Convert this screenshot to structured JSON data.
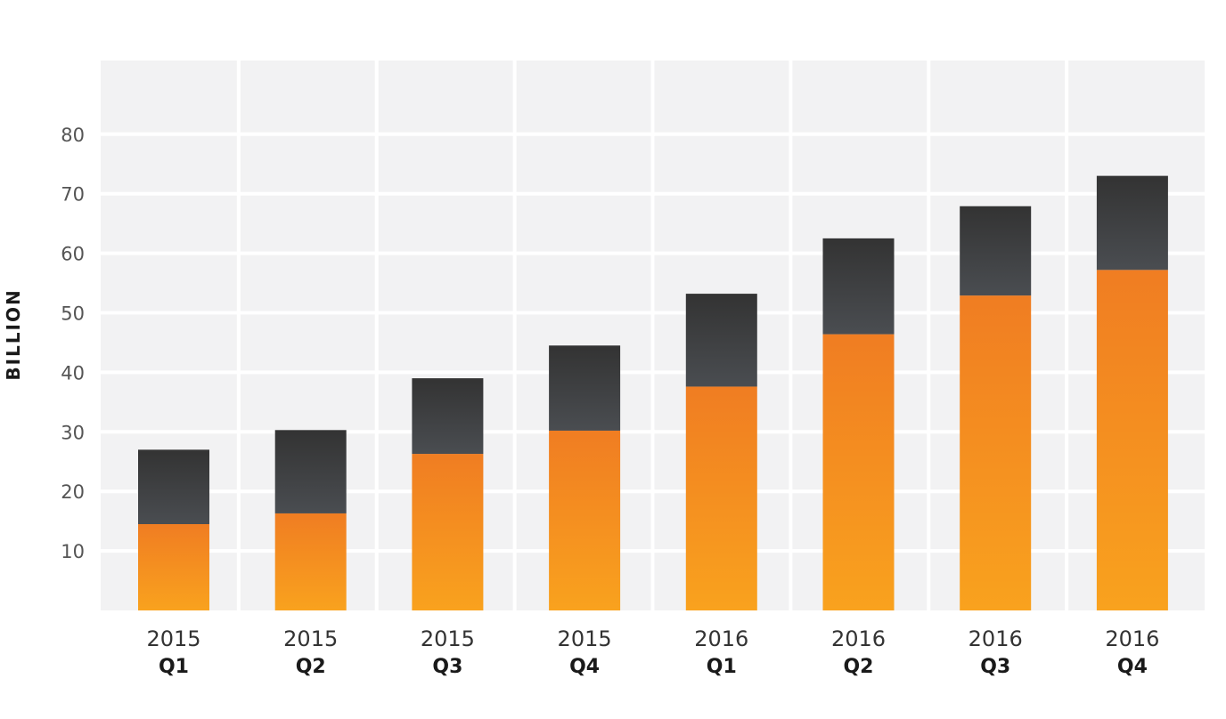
{
  "chart_data": {
    "type": "bar",
    "stacked": true,
    "ylabel": "BILLION",
    "xlabel": "",
    "title": "",
    "ylim": [
      0,
      90
    ],
    "yticks": [
      10,
      20,
      30,
      40,
      50,
      60,
      70,
      80
    ],
    "categories": [
      {
        "year": "2015",
        "quarter": "Q1"
      },
      {
        "year": "2015",
        "quarter": "Q2"
      },
      {
        "year": "2015",
        "quarter": "Q3"
      },
      {
        "year": "2015",
        "quarter": "Q4"
      },
      {
        "year": "2016",
        "quarter": "Q1"
      },
      {
        "year": "2016",
        "quarter": "Q2"
      },
      {
        "year": "2016",
        "quarter": "Q3"
      },
      {
        "year": "2016",
        "quarter": "Q4"
      }
    ],
    "series": [
      {
        "color_top": "#f07d22",
        "color_bottom": "#f9a21e",
        "values": [
          14.5,
          16.3,
          26.3,
          30.2,
          37.6,
          46.4,
          52.9,
          57.2
        ]
      },
      {
        "color_top": "#333333",
        "color_bottom": "#4a4d51",
        "values": [
          12.5,
          14.0,
          12.7,
          14.3,
          15.6,
          16.1,
          15.0,
          15.8
        ]
      }
    ],
    "grid": true,
    "plot_background": "#f2f2f3",
    "grid_color": "#ffffff",
    "legend": "none"
  }
}
